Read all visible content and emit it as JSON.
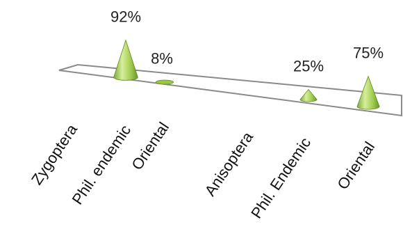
{
  "chart_data": {
    "type": "bar",
    "style": "3d-cone",
    "categories": [
      "Zygoptera",
      "Phil. endemic",
      "Oriental",
      "Anisoptera",
      "Phil. Endemic",
      "Oriental"
    ],
    "values": [
      92,
      8,
      null,
      null,
      25,
      75
    ],
    "data_labels": [
      "92%",
      "8%",
      "",
      "",
      "25%",
      "75%"
    ],
    "unit": "%",
    "ylim": [
      0,
      100
    ],
    "grid": false,
    "legend": "none",
    "colors": {
      "cone_light": "#c9e58a",
      "cone_mid": "#9cc646",
      "cone_dark": "#5f8a1f",
      "floor_stroke": "#8a8a8a",
      "text": "#222222"
    }
  }
}
